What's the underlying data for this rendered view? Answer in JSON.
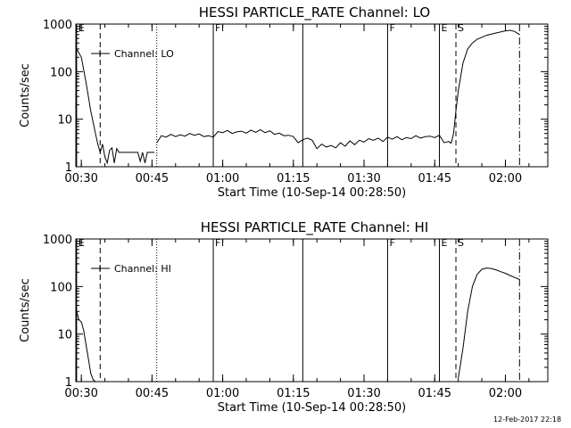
{
  "footer": {
    "timestamp": "12-Feb-2017 22:18"
  },
  "chart_data": [
    {
      "type": "line",
      "title": "HESSI PARTICLE_RATE Channel: LO",
      "xlabel": "Start Time (10-Sep-14 00:28:50)",
      "ylabel": "Counts/sec",
      "y_scale": "log",
      "ylim": [
        1,
        1000
      ],
      "xlim": [
        "00:28:50",
        "02:09:00"
      ],
      "x_ticks": [
        "00:30",
        "00:45",
        "01:00",
        "01:15",
        "01:30",
        "01:45",
        "02:00"
      ],
      "y_ticks": [
        "1",
        "10",
        "100",
        "1000"
      ],
      "legend": {
        "label": "Channel: LO",
        "position": "top-left"
      },
      "markers": [
        {
          "label": "E",
          "time": "00:29:00",
          "style": "solid"
        },
        {
          "label": "",
          "time": "00:34:00",
          "style": "dashed"
        },
        {
          "label": "",
          "time": "00:46:00",
          "style": "dotted"
        },
        {
          "label": "F",
          "time": "00:58:00",
          "style": "solid"
        },
        {
          "label": "",
          "time": "01:17:00",
          "style": "solid"
        },
        {
          "label": "F",
          "time": "01:35:00",
          "style": "solid"
        },
        {
          "label": "E",
          "time": "01:46:00",
          "style": "solid"
        },
        {
          "label": "S",
          "time": "01:49:30",
          "style": "dashed"
        },
        {
          "label": "",
          "time": "02:03:00",
          "style": "dashdot"
        }
      ],
      "series": [
        {
          "name": "Channel: LO",
          "segments": [
            {
              "x": [
                "00:29:00",
                "00:30:00",
                "00:31:00",
                "00:32:00",
                "00:33:00",
                "00:33:30",
                "00:34:00",
                "00:34:30",
                "00:35:00",
                "00:35:30",
                "00:36:00",
                "00:36:30",
                "00:37:00",
                "00:37:30",
                "00:38:00",
                "00:39:00",
                "00:40:00",
                "00:41:00",
                "00:42:00",
                "00:42:30",
                "00:43:00",
                "00:43:30",
                "00:44:00",
                "00:45:00",
                "00:45:30"
              ],
              "y": [
                300,
                200,
                60,
                15,
                5,
                3,
                2,
                3,
                1.6,
                1.2,
                2.2,
                2.5,
                1.2,
                2.4,
                2,
                2,
                2,
                2,
                2,
                1.3,
                2,
                1.2,
                2,
                2,
                2
              ]
            },
            {
              "x": [
                "00:46:00",
                "00:47:00",
                "00:48:00",
                "00:49:00",
                "00:50:00",
                "00:51:00",
                "00:52:00",
                "00:53:00",
                "00:54:00",
                "00:55:00",
                "00:56:00",
                "00:57:00",
                "00:58:00",
                "00:59:00",
                "01:00:00",
                "01:01:00",
                "01:02:00",
                "01:03:00",
                "01:04:00",
                "01:05:00",
                "01:06:00",
                "01:07:00",
                "01:08:00",
                "01:09:00",
                "01:10:00",
                "01:11:00",
                "01:12:00",
                "01:13:00",
                "01:14:00",
                "01:15:00",
                "01:16:00",
                "01:17:00",
                "01:18:00",
                "01:19:00",
                "01:20:00",
                "01:21:00",
                "01:22:00",
                "01:23:00",
                "01:24:00",
                "01:25:00",
                "01:26:00",
                "01:27:00",
                "01:28:00",
                "01:29:00",
                "01:30:00",
                "01:31:00",
                "01:32:00",
                "01:33:00",
                "01:34:00",
                "01:35:00",
                "01:36:00",
                "01:37:00",
                "01:38:00",
                "01:39:00",
                "01:40:00",
                "01:41:00",
                "01:42:00",
                "01:43:00",
                "01:44:00",
                "01:45:00",
                "01:46:00",
                "01:47:00",
                "01:48:00",
                "01:48:30"
              ],
              "y": [
                3.2,
                4.5,
                4.2,
                4.8,
                4.3,
                4.7,
                4.4,
                5.0,
                4.6,
                4.9,
                4.3,
                4.5,
                4.2,
                5.5,
                5.2,
                5.8,
                5.0,
                5.4,
                5.6,
                5.1,
                5.9,
                5.3,
                6.0,
                5.2,
                5.7,
                4.8,
                5.1,
                4.5,
                4.6,
                4.3,
                3.2,
                3.7,
                4.0,
                3.6,
                2.4,
                3.0,
                2.6,
                2.8,
                2.5,
                3.2,
                2.7,
                3.5,
                2.9,
                3.6,
                3.3,
                3.9,
                3.6,
                4.0,
                3.4,
                4.2,
                3.8,
                4.3,
                3.7,
                4.1,
                3.9,
                4.5,
                4.0,
                4.3,
                4.4,
                4.1,
                4.6,
                3.2,
                3.4,
                3.1
              ]
            },
            {
              "x": [
                "01:48:30",
                "01:49:00",
                "01:49:30",
                "01:50:00",
                "01:51:00",
                "01:52:00",
                "01:53:00",
                "01:54:00",
                "01:56:00",
                "01:58:00",
                "02:00:00",
                "02:01:00",
                "02:02:00",
                "02:03:00"
              ],
              "y": [
                3.1,
                5,
                15,
                40,
                150,
                300,
                400,
                480,
                580,
                650,
                720,
                740,
                700,
                600
              ]
            }
          ]
        }
      ]
    },
    {
      "type": "line",
      "title": "HESSI PARTICLE_RATE Channel: HI",
      "xlabel": "Start Time (10-Sep-14 00:28:50)",
      "ylabel": "Counts/sec",
      "y_scale": "log",
      "ylim": [
        1,
        1000
      ],
      "xlim": [
        "00:28:50",
        "02:09:00"
      ],
      "x_ticks": [
        "00:30",
        "00:45",
        "01:00",
        "01:15",
        "01:30",
        "01:45",
        "02:00"
      ],
      "y_ticks": [
        "1",
        "10",
        "100",
        "1000"
      ],
      "legend": {
        "label": "Channel: HI",
        "position": "top-left"
      },
      "markers": [
        {
          "label": "E",
          "time": "00:29:00",
          "style": "solid"
        },
        {
          "label": "",
          "time": "00:34:00",
          "style": "dashed"
        },
        {
          "label": "",
          "time": "00:46:00",
          "style": "dotted"
        },
        {
          "label": "F",
          "time": "00:58:00",
          "style": "solid"
        },
        {
          "label": "",
          "time": "01:17:00",
          "style": "solid"
        },
        {
          "label": "F",
          "time": "01:35:00",
          "style": "solid"
        },
        {
          "label": "E",
          "time": "01:46:00",
          "style": "solid"
        },
        {
          "label": "S",
          "time": "01:49:30",
          "style": "dashed"
        },
        {
          "label": "",
          "time": "02:03:00",
          "style": "dashdot"
        }
      ],
      "series": [
        {
          "name": "Channel: HI",
          "segments": [
            {
              "x": [
                "00:29:00",
                "00:29:30",
                "00:30:00",
                "00:30:30",
                "00:31:00",
                "00:31:30",
                "00:32:00",
                "00:32:30",
                "00:33:00"
              ],
              "y": [
                30,
                20,
                18,
                12,
                6,
                3,
                1.5,
                1.1,
                1
              ]
            },
            {
              "x": [
                "01:50:00",
                "01:51:00",
                "01:52:00",
                "01:53:00",
                "01:54:00",
                "01:55:00",
                "01:56:00",
                "01:57:00",
                "01:58:00",
                "01:59:00",
                "02:00:00",
                "02:01:00",
                "02:02:00",
                "02:03:00"
              ],
              "y": [
                1.2,
                5,
                30,
                100,
                180,
                230,
                245,
                240,
                225,
                205,
                190,
                170,
                155,
                140
              ]
            }
          ]
        }
      ]
    }
  ]
}
